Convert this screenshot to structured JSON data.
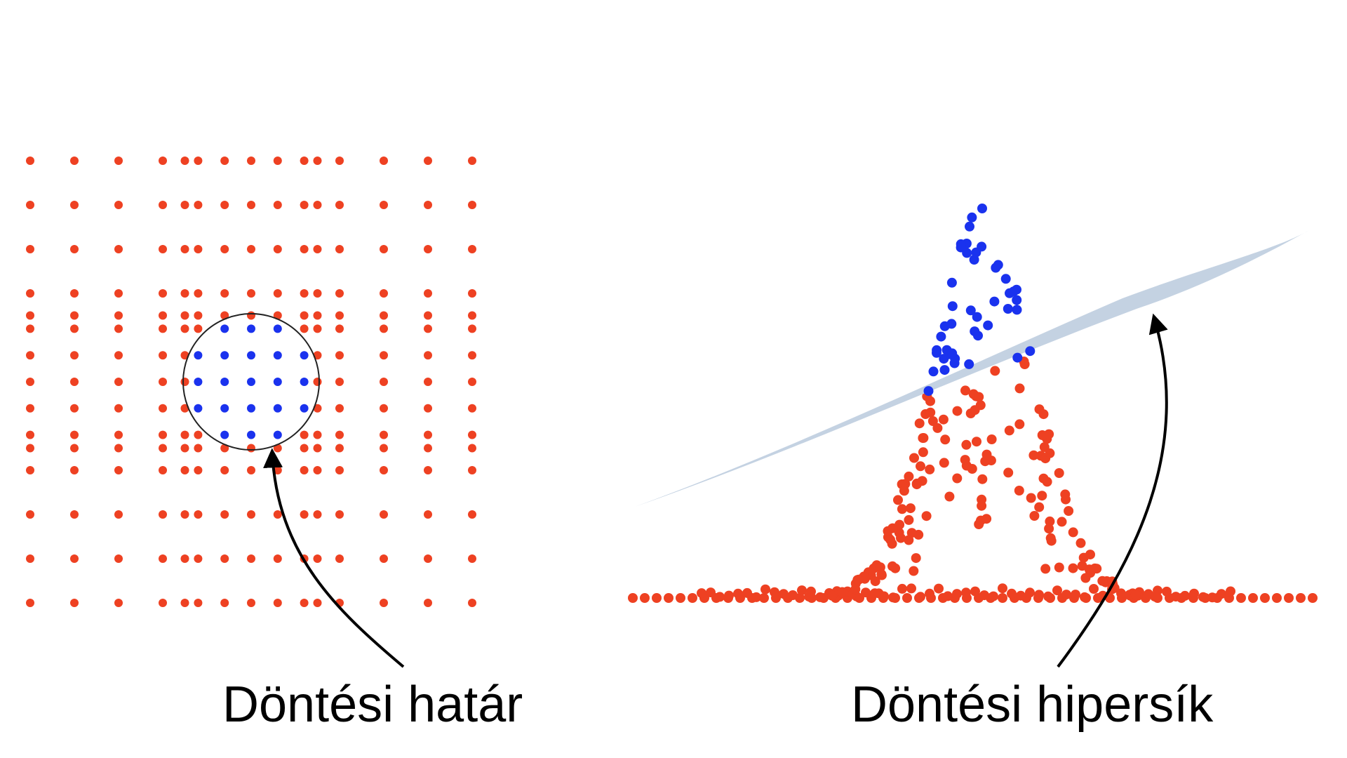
{
  "labels": {
    "left": "Döntési határ",
    "right": "Döntési hipersík"
  },
  "colors": {
    "outside_points": "#ee4122",
    "inside_points": "#1a32ee",
    "boundary_circle": "#222222",
    "hyperplane": "#c4d2e2",
    "arrow": "#000000",
    "background": "#ffffff"
  },
  "left_panel": {
    "description_tags": [
      "point-grid",
      "circle-decision-boundary",
      "arrow"
    ],
    "grid_values": [
      -5,
      -4,
      -3,
      -2,
      -1.5,
      -1.2,
      -0.6,
      0,
      0.6,
      1.2,
      1.5,
      2,
      3,
      4,
      5
    ],
    "boundary_radius": 1.5
  },
  "right_panel": {
    "description_tags": [
      "lifted-points-bell",
      "hyperplane",
      "arrow"
    ]
  }
}
